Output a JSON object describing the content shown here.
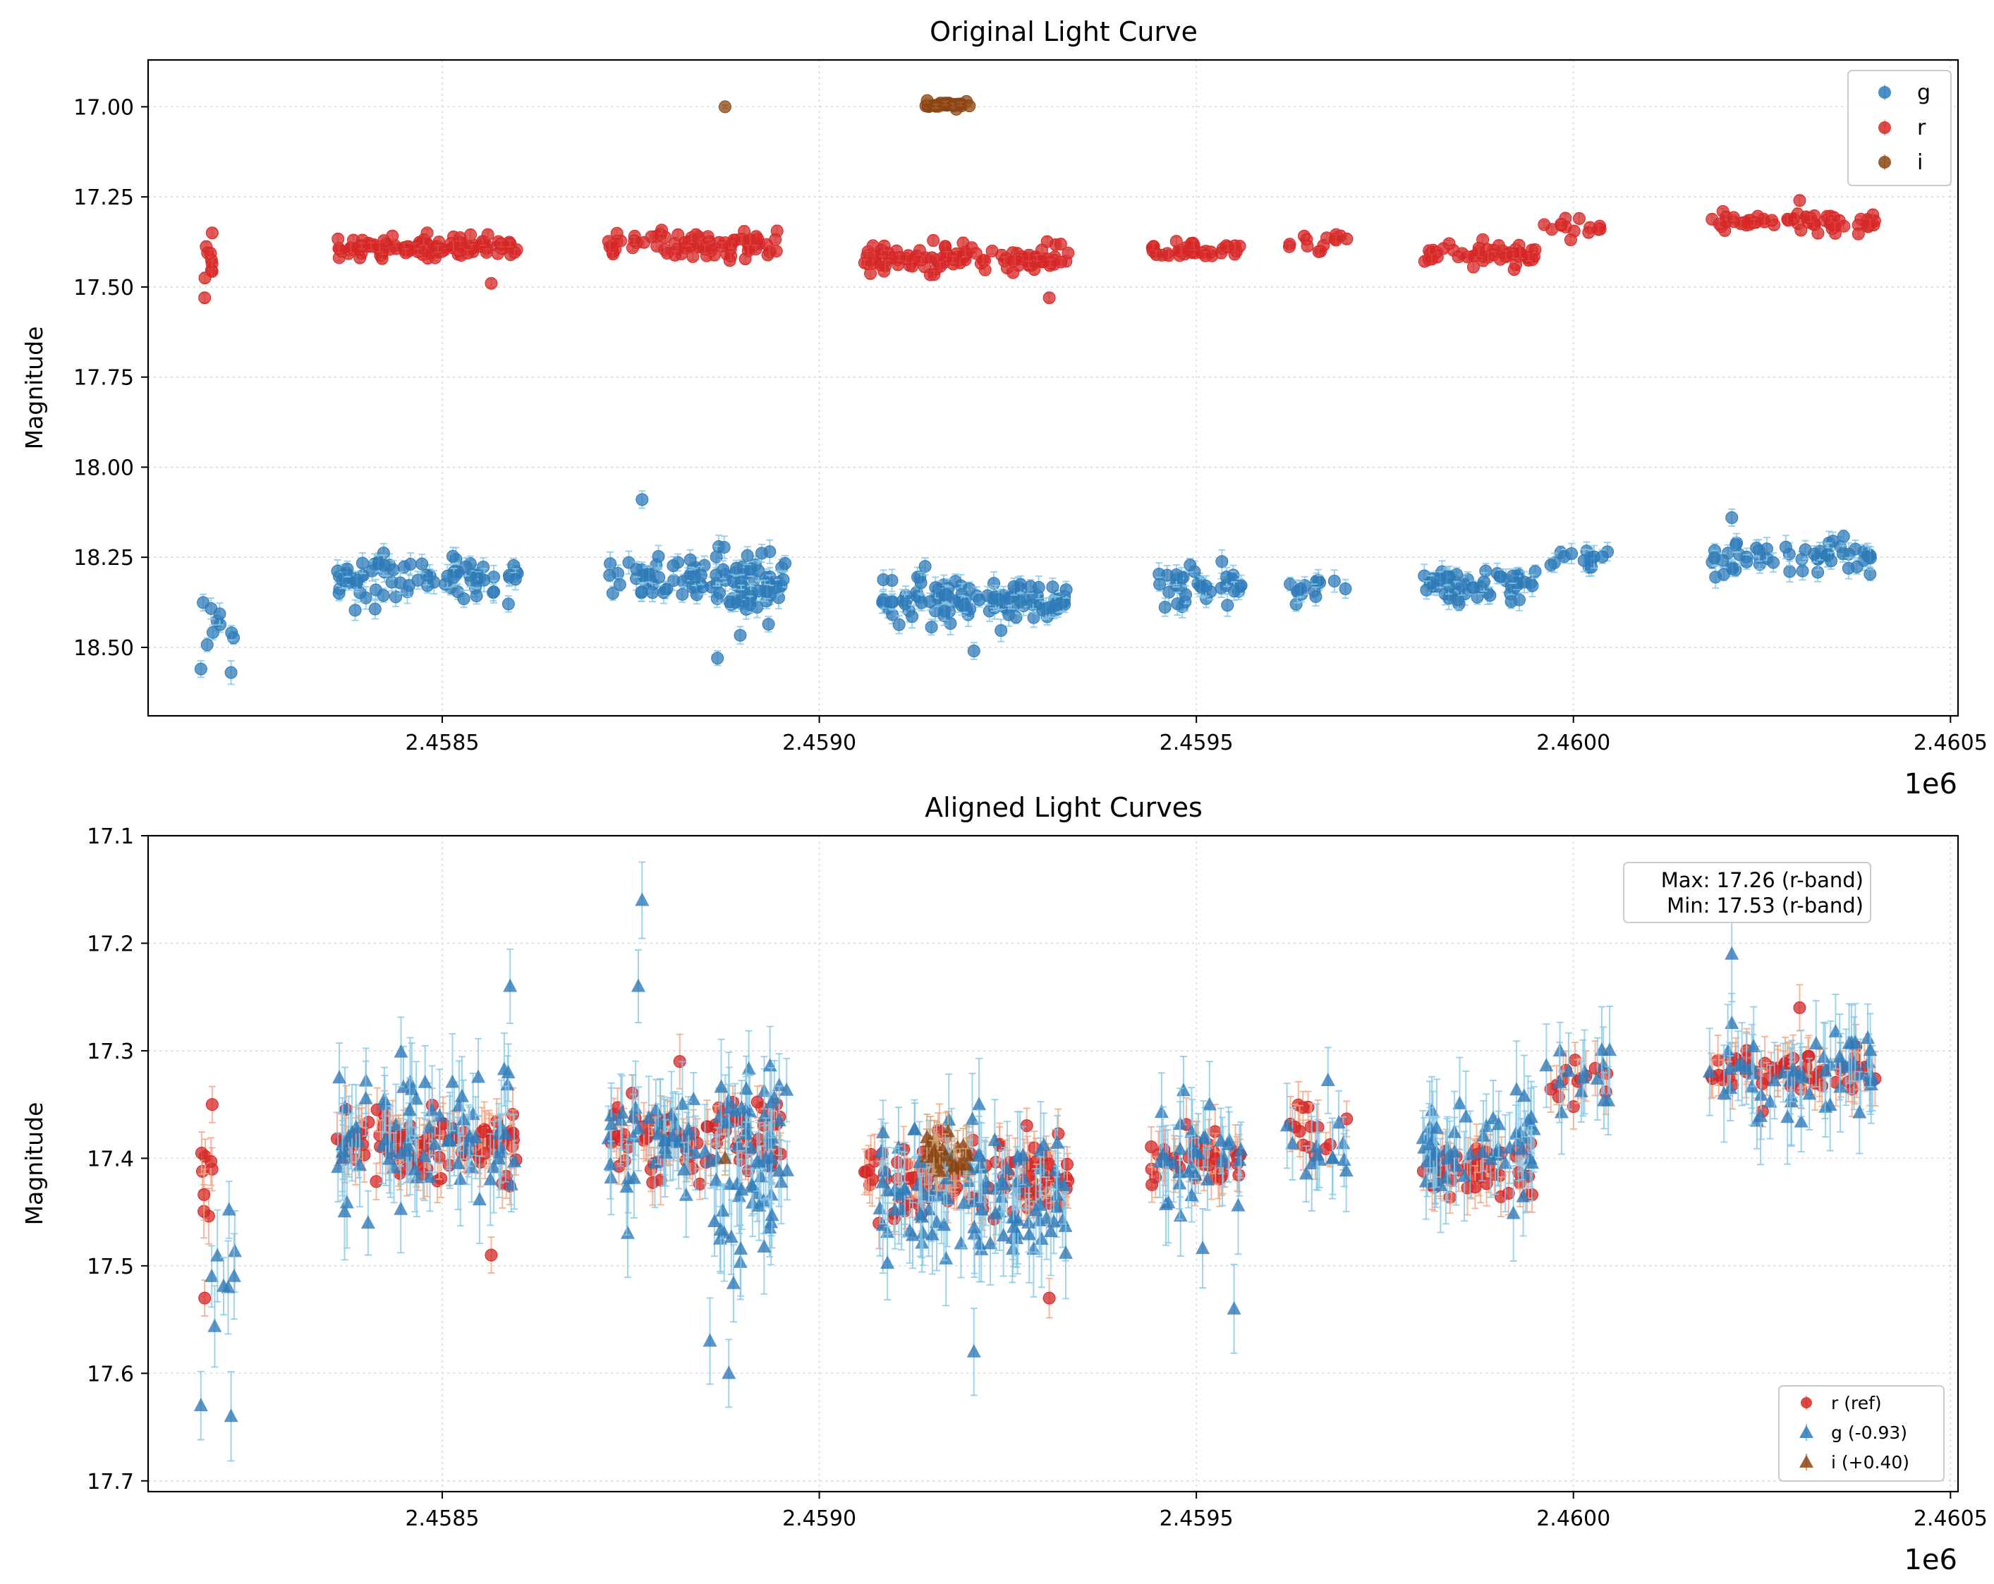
{
  "colors": {
    "g": "#2f7bb8",
    "g_err": "#87c7e6",
    "r": "#d62728",
    "r_err": "#f4a582",
    "i": "#8b4513",
    "i_err": "#d2a679"
  },
  "chart_data": [
    {
      "type": "scatter",
      "title": "Original Light Curve",
      "xlabel": "",
      "ylabel": "Magnitude",
      "x_offset_label": "1e6",
      "xlim": [
        2458110,
        2460510
      ],
      "ylim": [
        18.69,
        16.87
      ],
      "y_inverted": true,
      "xticks": [
        2458500,
        2459000,
        2459500,
        2460000,
        2460500
      ],
      "xtick_labels": [
        "2.4585",
        "2.4590",
        "2.4595",
        "2.4600",
        "2.4605"
      ],
      "yticks": [
        17.0,
        17.25,
        17.5,
        17.75,
        18.0,
        18.25,
        18.5
      ],
      "ytick_labels": [
        "17.00",
        "17.25",
        "17.50",
        "17.75",
        "18.00",
        "18.25",
        "18.50"
      ],
      "legend": {
        "position": "top-right",
        "entries": [
          "g",
          "r",
          "i"
        ]
      },
      "grid": true,
      "series": [
        {
          "name": "g",
          "marker": "circle",
          "color_key": "g",
          "error": 0.025,
          "segments": [
            {
              "x0": 2458180,
              "x1": 2458230,
              "n": 9,
              "mean": 18.43,
              "spread": 0.08
            },
            {
              "x0": 2458360,
              "x1": 2458600,
              "n": 80,
              "mean": 18.31,
              "spread": 0.05
            },
            {
              "x0": 2458720,
              "x1": 2458960,
              "n": 80,
              "mean": 18.31,
              "spread": 0.05
            },
            {
              "x0": 2458860,
              "x1": 2458940,
              "n": 25,
              "mean": 18.37,
              "spread": 0.05
            },
            {
              "x0": 2459080,
              "x1": 2459330,
              "n": 110,
              "mean": 18.37,
              "spread": 0.05
            },
            {
              "x0": 2459450,
              "x1": 2459560,
              "n": 35,
              "mean": 18.33,
              "spread": 0.05
            },
            {
              "x0": 2459620,
              "x1": 2459700,
              "n": 14,
              "mean": 18.33,
              "spread": 0.03
            },
            {
              "x0": 2459800,
              "x1": 2459950,
              "n": 55,
              "mean": 18.32,
              "spread": 0.04
            },
            {
              "x0": 2459960,
              "x1": 2460050,
              "n": 14,
              "mean": 18.25,
              "spread": 0.03
            },
            {
              "x0": 2460180,
              "x1": 2460400,
              "n": 55,
              "mean": 18.25,
              "spread": 0.04
            }
          ],
          "points": [
            [
              2458180,
              18.56
            ],
            [
              2458220,
              18.57
            ],
            [
              2458765,
              18.09
            ],
            [
              2458865,
              18.53
            ],
            [
              2459205,
              18.51
            ],
            [
              2460210,
              18.14
            ]
          ]
        },
        {
          "name": "r",
          "marker": "circle",
          "color_key": "r",
          "error": 0.012,
          "segments": [
            {
              "x0": 2458180,
              "x1": 2458195,
              "n": 8,
              "mean": 17.42,
              "spread": 0.05
            },
            {
              "x0": 2458360,
              "x1": 2458600,
              "n": 110,
              "mean": 17.39,
              "spread": 0.025
            },
            {
              "x0": 2458720,
              "x1": 2458950,
              "n": 80,
              "mean": 17.38,
              "spread": 0.03
            },
            {
              "x0": 2459060,
              "x1": 2459330,
              "n": 110,
              "mean": 17.42,
              "spread": 0.03
            },
            {
              "x0": 2459440,
              "x1": 2459560,
              "n": 40,
              "mean": 17.4,
              "spread": 0.02
            },
            {
              "x0": 2459620,
              "x1": 2459700,
              "n": 14,
              "mean": 17.38,
              "spread": 0.025
            },
            {
              "x0": 2459800,
              "x1": 2459950,
              "n": 50,
              "mean": 17.41,
              "spread": 0.025
            },
            {
              "x0": 2459960,
              "x1": 2460050,
              "n": 14,
              "mean": 17.33,
              "spread": 0.025
            },
            {
              "x0": 2460180,
              "x1": 2460400,
              "n": 60,
              "mean": 17.32,
              "spread": 0.02
            }
          ],
          "points": [
            [
              2458185,
              17.53
            ],
            [
              2458195,
              17.35
            ],
            [
              2458565,
              17.49
            ],
            [
              2459305,
              17.53
            ],
            [
              2460300,
              17.26
            ],
            [
              2458480,
              17.35
            ]
          ]
        },
        {
          "name": "i",
          "marker": "circle",
          "color_key": "i",
          "error": 0.005,
          "segments": [
            {
              "x0": 2459140,
              "x1": 2459200,
              "n": 30,
              "mean": 16.995,
              "spread": 0.008
            }
          ],
          "points": [
            [
              2458875,
              17.0
            ]
          ]
        }
      ]
    },
    {
      "type": "scatter",
      "title": "Aligned Light Curves",
      "xlabel": "",
      "ylabel": "Magnitude",
      "x_offset_label": "1e6",
      "xlim": [
        2458110,
        2460510
      ],
      "ylim": [
        17.71,
        17.1
      ],
      "y_inverted": true,
      "xticks": [
        2458500,
        2459000,
        2459500,
        2460000,
        2460500
      ],
      "xtick_labels": [
        "2.4585",
        "2.4590",
        "2.4595",
        "2.4600",
        "2.4605"
      ],
      "yticks": [
        17.1,
        17.2,
        17.3,
        17.4,
        17.5,
        17.6,
        17.7
      ],
      "ytick_labels": [
        "17.1",
        "17.2",
        "17.3",
        "17.4",
        "17.5",
        "17.6",
        "17.7"
      ],
      "legend": {
        "position": "bottom-right",
        "entries": [
          "r (ref)",
          "g (-0.93)",
          "i (+0.40)"
        ]
      },
      "annotation": {
        "position": "top-right",
        "lines": [
          "Max: 17.26 (r-band)",
          "Min: 17.53 (r-band)"
        ]
      },
      "grid": true,
      "series": [
        {
          "name": "r (ref)",
          "marker": "circle",
          "color_key": "r",
          "error": 0.02,
          "segments": [
            {
              "x0": 2458180,
              "x1": 2458195,
              "n": 8,
              "mean": 17.42,
              "spread": 0.05
            },
            {
              "x0": 2458360,
              "x1": 2458600,
              "n": 110,
              "mean": 17.39,
              "spread": 0.025
            },
            {
              "x0": 2458720,
              "x1": 2458950,
              "n": 80,
              "mean": 17.38,
              "spread": 0.03
            },
            {
              "x0": 2459060,
              "x1": 2459330,
              "n": 110,
              "mean": 17.42,
              "spread": 0.03
            },
            {
              "x0": 2459440,
              "x1": 2459560,
              "n": 40,
              "mean": 17.4,
              "spread": 0.02
            },
            {
              "x0": 2459620,
              "x1": 2459700,
              "n": 14,
              "mean": 17.38,
              "spread": 0.025
            },
            {
              "x0": 2459800,
              "x1": 2459950,
              "n": 50,
              "mean": 17.41,
              "spread": 0.025
            },
            {
              "x0": 2459960,
              "x1": 2460050,
              "n": 14,
              "mean": 17.33,
              "spread": 0.025
            },
            {
              "x0": 2460180,
              "x1": 2460400,
              "n": 60,
              "mean": 17.32,
              "spread": 0.02
            }
          ],
          "points": [
            [
              2458185,
              17.53
            ],
            [
              2458195,
              17.35
            ],
            [
              2458565,
              17.49
            ],
            [
              2459305,
              17.53
            ],
            [
              2460300,
              17.26
            ],
            [
              2458815,
              17.31
            ]
          ]
        },
        {
          "name": "g (-0.93)",
          "marker": "triangle",
          "color_key": "g",
          "error": 0.035,
          "segments": [
            {
              "x0": 2458180,
              "x1": 2458230,
              "n": 8,
              "mean": 17.5,
              "spread": 0.07
            },
            {
              "x0": 2458360,
              "x1": 2458600,
              "n": 80,
              "mean": 17.38,
              "spread": 0.05
            },
            {
              "x0": 2458720,
              "x1": 2458960,
              "n": 80,
              "mean": 17.38,
              "spread": 0.05
            },
            {
              "x0": 2458860,
              "x1": 2458940,
              "n": 25,
              "mean": 17.44,
              "spread": 0.05
            },
            {
              "x0": 2459080,
              "x1": 2459330,
              "n": 110,
              "mean": 17.44,
              "spread": 0.05
            },
            {
              "x0": 2459450,
              "x1": 2459560,
              "n": 35,
              "mean": 17.4,
              "spread": 0.05
            },
            {
              "x0": 2459620,
              "x1": 2459700,
              "n": 14,
              "mean": 17.4,
              "spread": 0.03
            },
            {
              "x0": 2459800,
              "x1": 2459950,
              "n": 55,
              "mean": 17.39,
              "spread": 0.04
            },
            {
              "x0": 2459960,
              "x1": 2460050,
              "n": 14,
              "mean": 17.32,
              "spread": 0.03
            },
            {
              "x0": 2460180,
              "x1": 2460400,
              "n": 55,
              "mean": 17.32,
              "spread": 0.04
            }
          ],
          "points": [
            [
              2458180,
              17.63
            ],
            [
              2458220,
              17.64
            ],
            [
              2458765,
              17.16
            ],
            [
              2458760,
              17.24
            ],
            [
              2458855,
              17.57
            ],
            [
              2458880,
              17.6
            ],
            [
              2459205,
              17.58
            ],
            [
              2460210,
              17.21
            ],
            [
              2458590,
              17.24
            ],
            [
              2459550,
              17.54
            ]
          ]
        },
        {
          "name": "i (+0.40)",
          "marker": "triangle",
          "color_key": "i",
          "error": 0.02,
          "segments": [
            {
              "x0": 2459140,
              "x1": 2459200,
              "n": 30,
              "mean": 17.395,
              "spread": 0.012
            }
          ],
          "points": [
            [
              2458875,
              17.4
            ]
          ]
        }
      ]
    }
  ]
}
